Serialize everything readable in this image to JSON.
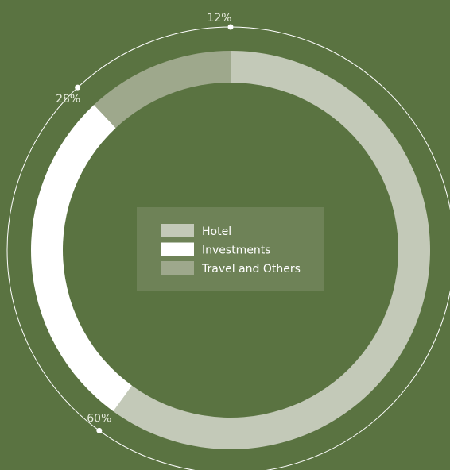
{
  "chart_data": {
    "type": "pie",
    "variant": "donut",
    "categories": [
      "Hotel",
      "Investments",
      "Travel and Others"
    ],
    "values": [
      60,
      28,
      12
    ],
    "labels": [
      "60%",
      "28%",
      "12%"
    ],
    "colors": [
      "#c3c9b8",
      "#ffffff",
      "#9ea88c"
    ],
    "start_angle_deg": 0,
    "direction": "clockwise",
    "legend_position": "center",
    "title": ""
  },
  "colors": {
    "background": "#5a7341",
    "legend_background": "#6e8257",
    "outer_ring": "#ffffff",
    "label_text": "#e6ebdc"
  }
}
